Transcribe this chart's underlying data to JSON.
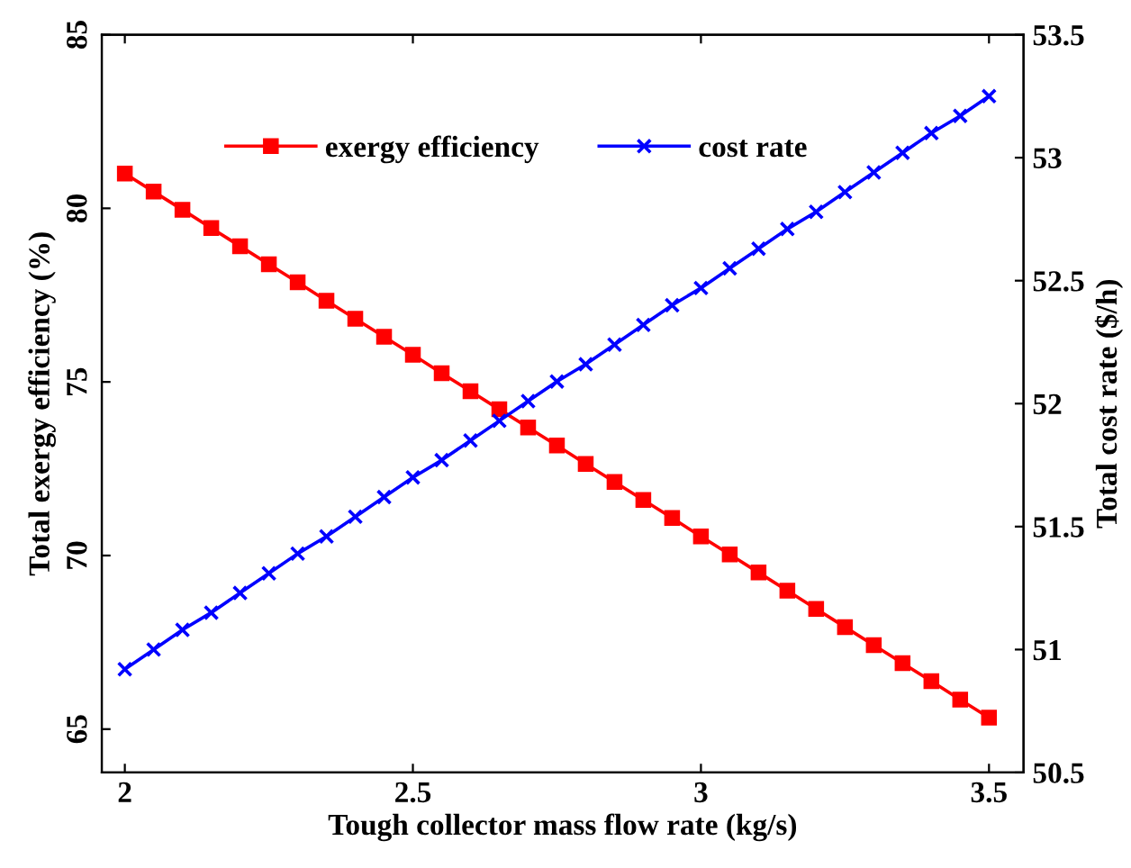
{
  "chart_data": {
    "type": "line",
    "xlabel": "Tough collector mass flow rate (kg/s)",
    "ylabel": "Total exergy efficiency (%)",
    "y2label": "Total cost rate ($/h)",
    "x": [
      2.0,
      2.05,
      2.1,
      2.15,
      2.2,
      2.25,
      2.3,
      2.35,
      2.4,
      2.45,
      2.5,
      2.55,
      2.6,
      2.65,
      2.7,
      2.75,
      2.8,
      2.85,
      2.9,
      2.95,
      3.0,
      3.05,
      3.1,
      3.15,
      3.2,
      3.25,
      3.3,
      3.35,
      3.4,
      3.45,
      3.5
    ],
    "series": [
      {
        "name": "exergy efficiency",
        "color": "#ff0000",
        "marker": "square",
        "values": [
          81.0,
          80.48,
          79.96,
          79.43,
          78.91,
          78.39,
          77.87,
          77.34,
          76.82,
          76.3,
          75.78,
          75.25,
          74.73,
          74.21,
          73.69,
          73.17,
          72.64,
          72.12,
          71.6,
          71.08,
          70.55,
          70.03,
          69.51,
          68.99,
          68.46,
          67.94,
          67.42,
          66.9,
          66.38,
          65.85,
          65.33
        ]
      },
      {
        "name": "cost rate",
        "color": "#0000ff",
        "marker": "cross",
        "axis": "y2",
        "values": [
          50.92,
          51.0,
          51.08,
          51.15,
          51.23,
          51.31,
          51.39,
          51.46,
          51.54,
          51.62,
          51.7,
          51.77,
          51.85,
          51.93,
          52.01,
          52.09,
          52.16,
          52.24,
          52.32,
          52.4,
          52.47,
          52.55,
          52.63,
          52.71,
          52.78,
          52.86,
          52.94,
          53.02,
          53.1,
          53.17,
          53.25
        ]
      }
    ],
    "xlim": [
      1.96,
      3.56
    ],
    "xticks": [
      2,
      2.5,
      3,
      3.5
    ],
    "ylim": [
      63.75,
      85
    ],
    "yticks": [
      65,
      70,
      75,
      80,
      85
    ],
    "y2lim": [
      50.5,
      53.5
    ],
    "y2ticks": [
      50.5,
      51,
      51.5,
      52,
      52.5,
      53,
      53.5
    ],
    "legend": "top",
    "grid": false,
    "line_style": "solid"
  }
}
